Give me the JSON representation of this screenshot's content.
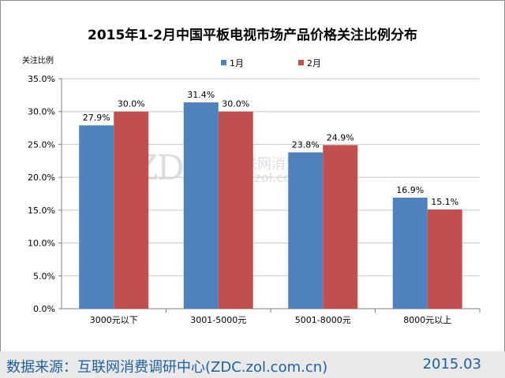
{
  "title": "2015年1-2月中国平板电视市场产品价格关注比例分布",
  "footer": {
    "source": "数据来源：互联网消费调研中心(ZDC.zol.com.cn)",
    "date": "2015.03"
  },
  "watermark": {
    "logo": "ZDC",
    "cn": "互联网消费调研中心",
    "url": "zdc.zol.com.cn"
  },
  "chart_data": {
    "type": "bar",
    "ylabel": "关注比例",
    "ylim": [
      0,
      35
    ],
    "yticks": [
      "0.0%",
      "5.0%",
      "10.0%",
      "15.0%",
      "20.0%",
      "25.0%",
      "30.0%",
      "35.0%"
    ],
    "categories": [
      "3000元以下",
      "3001-5000元",
      "5001-8000元",
      "8000元以上"
    ],
    "series": [
      {
        "name": "1月",
        "color": "#4f81bd",
        "values": [
          27.9,
          31.4,
          23.8,
          16.9
        ]
      },
      {
        "name": "2月",
        "color": "#c0504d",
        "values": [
          30.0,
          30.0,
          24.9,
          15.1
        ]
      }
    ],
    "legend": "top-center",
    "grid": true
  }
}
